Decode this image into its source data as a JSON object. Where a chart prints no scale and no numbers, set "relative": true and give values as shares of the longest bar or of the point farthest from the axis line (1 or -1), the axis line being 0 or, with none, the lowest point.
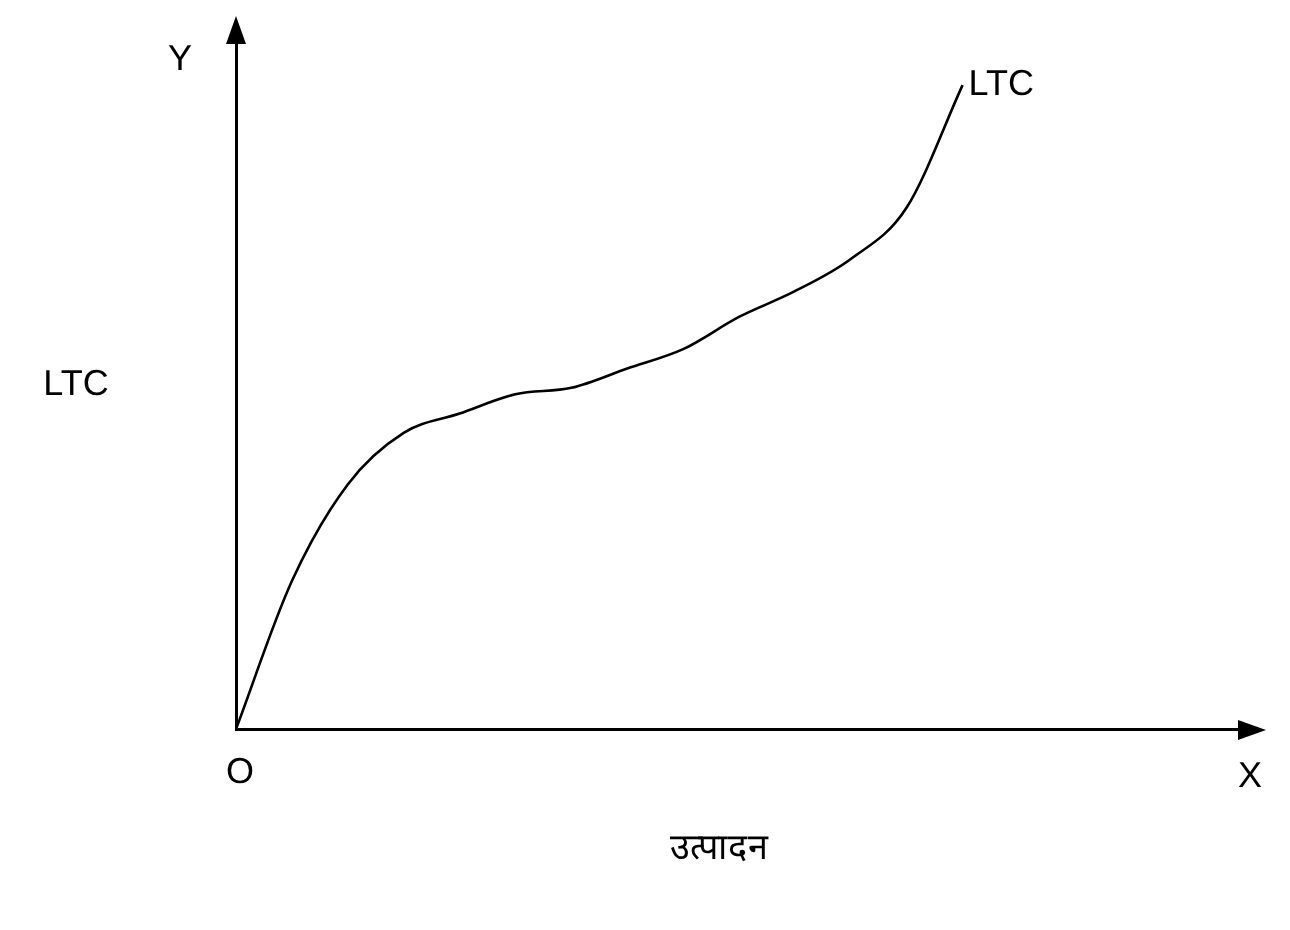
{
  "chart_data": {
    "type": "line",
    "relative": true,
    "xlabel": "उत्पादन",
    "ylabel": "LTC",
    "annotations": [
      "Y",
      "O",
      "X"
    ],
    "categories": [
      null,
      null,
      null,
      null,
      null,
      null,
      null,
      null,
      null,
      null,
      null,
      null,
      null,
      null,
      null,
      null,
      null,
      null,
      null
    ],
    "series": [
      {
        "name": "LTC",
        "color": "#000000",
        "values": [
          0,
          0.23,
          0.38,
          0.46,
          0.49,
          0.52,
          0.53,
          0.56,
          0.59,
          0.64,
          0.68,
          0.73,
          0.81,
          1,
          null,
          null,
          null,
          null,
          null
        ]
      }
    ],
    "legend": false,
    "grid": false
  }
}
